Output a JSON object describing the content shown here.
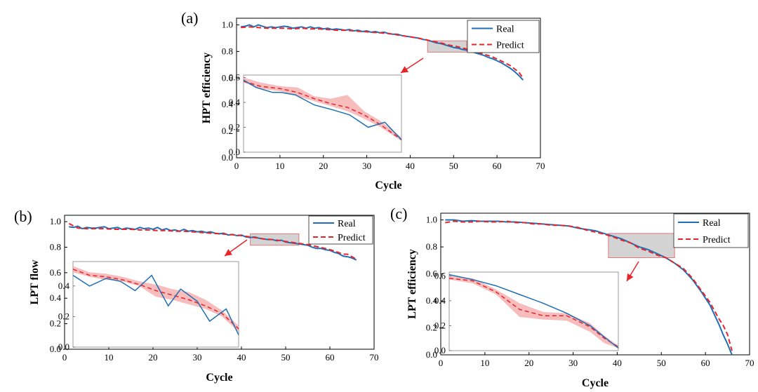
{
  "colors": {
    "real": "#1f6fb5",
    "predict": "#e8242b",
    "band": "#f4a6a6",
    "zoom_box_fill": "#c8c8c8",
    "zoom_box_stroke": "#e07a7a",
    "arrow": "#e8242b",
    "axis": "#000000",
    "inset_frame": "#9a9a9a"
  },
  "chart_data": [
    {
      "panel_label": "(a)",
      "type": "line",
      "xlabel": "Cycle",
      "ylabel": "HPT efficiency",
      "xlim": [
        0,
        70
      ],
      "ylim": [
        0.0,
        1.05
      ],
      "xticks": [
        0,
        10,
        20,
        30,
        40,
        50,
        60,
        70
      ],
      "xtick_labels": [
        "0",
        "10",
        "20",
        "30",
        "40",
        "50",
        "60",
        "70"
      ],
      "yticks": [
        0.0,
        0.2,
        0.4,
        0.6,
        0.8,
        1.0
      ],
      "ytick_labels": [
        "0.0",
        "0.2",
        "0.4",
        "0.6",
        "0.8",
        "1.0"
      ],
      "legend": {
        "placement": "top-right",
        "entries": [
          "Real",
          "Predict"
        ]
      },
      "grid": false,
      "series": [
        {
          "name": "Real",
          "style": "solid",
          "x": [
            1,
            2,
            3,
            4,
            5,
            6,
            7,
            8,
            9,
            10,
            11,
            12,
            13,
            14,
            15,
            16,
            17,
            18,
            19,
            20,
            21,
            22,
            23,
            24,
            25,
            26,
            27,
            28,
            29,
            30,
            31,
            32,
            33,
            34,
            35,
            36,
            37,
            38,
            39,
            40,
            41,
            42,
            43,
            44,
            45,
            46,
            47,
            48,
            49,
            50,
            51,
            52,
            53,
            54,
            55,
            56,
            57,
            58,
            59,
            60,
            61,
            62,
            63,
            64,
            65,
            66
          ],
          "y": [
            0.985,
            0.99,
            1.0,
            0.985,
            1.0,
            0.99,
            0.98,
            0.985,
            0.98,
            0.985,
            0.99,
            0.985,
            0.975,
            0.98,
            0.985,
            0.975,
            0.985,
            0.975,
            0.98,
            0.97,
            0.975,
            0.965,
            0.97,
            0.965,
            0.96,
            0.965,
            0.955,
            0.96,
            0.95,
            0.955,
            0.945,
            0.95,
            0.94,
            0.945,
            0.935,
            0.93,
            0.93,
            0.92,
            0.915,
            0.91,
            0.905,
            0.9,
            0.89,
            0.885,
            0.875,
            0.865,
            0.86,
            0.85,
            0.84,
            0.83,
            0.825,
            0.815,
            0.81,
            0.8,
            0.79,
            0.78,
            0.77,
            0.755,
            0.745,
            0.73,
            0.715,
            0.695,
            0.675,
            0.65,
            0.62,
            0.585
          ]
        },
        {
          "name": "Predict",
          "style": "dashed",
          "x": [
            1,
            3,
            5,
            7,
            9,
            11,
            13,
            15,
            17,
            19,
            21,
            23,
            25,
            27,
            29,
            31,
            33,
            35,
            37,
            39,
            41,
            43,
            45,
            47,
            49,
            51,
            53,
            55,
            57,
            59,
            61,
            63,
            65,
            66
          ],
          "y": [
            0.98,
            0.985,
            0.98,
            0.975,
            0.975,
            0.975,
            0.97,
            0.975,
            0.97,
            0.97,
            0.965,
            0.96,
            0.96,
            0.955,
            0.95,
            0.945,
            0.94,
            0.935,
            0.925,
            0.915,
            0.905,
            0.893,
            0.878,
            0.865,
            0.848,
            0.835,
            0.818,
            0.8,
            0.78,
            0.758,
            0.728,
            0.695,
            0.645,
            0.6
          ]
        }
      ],
      "zoom_region": {
        "x": [
          44,
          53
        ],
        "y": [
          0.795,
          0.88
        ]
      },
      "inset": {
        "x": [
          44,
          45,
          46,
          47,
          48,
          49,
          50,
          51,
          52,
          53
        ],
        "real": [
          0.58,
          0.52,
          0.48,
          0.48,
          0.46,
          0.38,
          0.34,
          0.3,
          0.2,
          0.24,
          0.1
        ],
        "real_x": [
          0,
          3,
          7,
          9,
          12.5,
          17,
          21.5,
          25.5,
          30,
          34,
          38
        ],
        "predict_x": [
          0,
          4,
          9,
          13,
          17,
          21,
          25,
          29,
          33,
          38
        ],
        "predict": [
          0.57,
          0.53,
          0.51,
          0.48,
          0.43,
          0.39,
          0.36,
          0.3,
          0.22,
          0.1
        ],
        "band_x": [
          0,
          4,
          9,
          13,
          17,
          21,
          25,
          29,
          33,
          38
        ],
        "band_lo": [
          0.56,
          0.51,
          0.49,
          0.45,
          0.41,
          0.37,
          0.33,
          0.27,
          0.2,
          0.09
        ],
        "band_hi": [
          0.6,
          0.56,
          0.53,
          0.52,
          0.45,
          0.43,
          0.46,
          0.33,
          0.25,
          0.12
        ],
        "xlim": [
          0,
          38
        ],
        "yticks": [
          0.0,
          0.2,
          0.4,
          0.6
        ],
        "ytick_labels": [
          "0.0",
          "0.2",
          "0.4",
          "0.6"
        ]
      }
    },
    {
      "panel_label": "(b)",
      "type": "line",
      "xlabel": "Cycle",
      "ylabel": "LPT flow",
      "xlim": [
        0,
        70
      ],
      "ylim": [
        0.0,
        1.05
      ],
      "xticks": [
        0,
        10,
        20,
        30,
        40,
        50,
        60,
        70
      ],
      "xtick_labels": [
        "0",
        "10",
        "20",
        "30",
        "40",
        "50",
        "60",
        "70"
      ],
      "yticks": [
        0.0,
        0.2,
        0.4,
        0.6,
        0.8,
        1.0
      ],
      "ytick_labels": [
        "0.0",
        "0.2",
        "0.4",
        "0.6",
        "0.8",
        "1.0"
      ],
      "legend": {
        "placement": "top-right",
        "entries": [
          "Real",
          "Predict"
        ]
      },
      "grid": false,
      "series": [
        {
          "name": "Real",
          "style": "solid",
          "x": [
            1,
            2,
            3,
            4,
            5,
            6,
            7,
            8,
            9,
            10,
            11,
            12,
            13,
            14,
            15,
            16,
            17,
            18,
            19,
            20,
            21,
            22,
            23,
            24,
            25,
            26,
            27,
            28,
            29,
            30,
            31,
            32,
            33,
            34,
            35,
            36,
            37,
            38,
            39,
            40,
            41,
            42,
            43,
            44,
            45,
            46,
            47,
            48,
            49,
            50,
            51,
            52,
            53,
            54,
            55,
            56,
            57,
            58,
            59,
            60,
            61,
            62,
            63,
            64,
            65,
            66
          ],
          "y": [
            0.96,
            0.955,
            0.965,
            0.945,
            0.955,
            0.95,
            0.95,
            0.955,
            0.96,
            0.945,
            0.95,
            0.955,
            0.94,
            0.95,
            0.945,
            0.94,
            0.955,
            0.945,
            0.95,
            0.94,
            0.955,
            0.935,
            0.945,
            0.93,
            0.935,
            0.925,
            0.94,
            0.925,
            0.93,
            0.92,
            0.925,
            0.915,
            0.92,
            0.91,
            0.905,
            0.91,
            0.895,
            0.9,
            0.89,
            0.895,
            0.88,
            0.875,
            0.88,
            0.87,
            0.865,
            0.86,
            0.86,
            0.85,
            0.855,
            0.84,
            0.835,
            0.83,
            0.825,
            0.82,
            0.815,
            0.8,
            0.79,
            0.79,
            0.78,
            0.775,
            0.76,
            0.75,
            0.73,
            0.725,
            0.715,
            0.7
          ]
        },
        {
          "name": "Predict",
          "style": "dashed",
          "x": [
            1,
            3,
            5,
            7,
            9,
            11,
            13,
            15,
            17,
            19,
            21,
            23,
            25,
            27,
            29,
            31,
            33,
            35,
            37,
            39,
            41,
            43,
            45,
            47,
            49,
            51,
            53,
            55,
            57,
            59,
            61,
            63,
            64,
            65,
            66
          ],
          "y": [
            0.985,
            0.95,
            0.945,
            0.945,
            0.945,
            0.94,
            0.94,
            0.94,
            0.935,
            0.935,
            0.93,
            0.93,
            0.925,
            0.925,
            0.92,
            0.915,
            0.91,
            0.905,
            0.9,
            0.895,
            0.885,
            0.875,
            0.865,
            0.86,
            0.85,
            0.84,
            0.83,
            0.82,
            0.805,
            0.79,
            0.77,
            0.745,
            0.745,
            0.725,
            0.705
          ]
        }
      ],
      "zoom_region": {
        "x": [
          42,
          53
        ],
        "y": [
          0.815,
          0.905
        ]
      },
      "inset": {
        "real_x": [
          0,
          4,
          8,
          11.5,
          15,
          19,
          23,
          26,
          30,
          33,
          37,
          40
        ],
        "real": [
          0.47,
          0.4,
          0.45,
          0.43,
          0.37,
          0.47,
          0.27,
          0.38,
          0.3,
          0.17,
          0.25,
          0.08
        ],
        "predict_x": [
          0,
          4,
          8,
          12,
          16,
          20,
          24,
          28,
          32,
          36,
          40
        ],
        "predict": [
          0.51,
          0.47,
          0.46,
          0.44,
          0.41,
          0.37,
          0.34,
          0.31,
          0.27,
          0.22,
          0.12
        ],
        "band_x": [
          0,
          4,
          8,
          12,
          16,
          20,
          24,
          28,
          32,
          36,
          40
        ],
        "band_lo": [
          0.49,
          0.46,
          0.44,
          0.43,
          0.4,
          0.33,
          0.31,
          0.28,
          0.25,
          0.2,
          0.1
        ],
        "band_hi": [
          0.53,
          0.49,
          0.48,
          0.46,
          0.43,
          0.41,
          0.38,
          0.36,
          0.31,
          0.24,
          0.14
        ],
        "xlim": [
          0,
          40
        ],
        "yticks": [
          0.0,
          0.2,
          0.4
        ],
        "ytick_labels": [
          "0.0",
          "0.2",
          "0.4"
        ]
      }
    },
    {
      "panel_label": "(c)",
      "type": "line",
      "xlabel": "Cycle",
      "ylabel": "LPT efficiency",
      "xlim": [
        0,
        70
      ],
      "ylim": [
        0.0,
        1.05
      ],
      "xticks": [
        0,
        10,
        20,
        30,
        40,
        50,
        60,
        70
      ],
      "xtick_labels": [
        "0",
        "10",
        "20",
        "30",
        "40",
        "50",
        "60",
        "70"
      ],
      "yticks": [
        0.0,
        0.2,
        0.4,
        0.6,
        0.8,
        1.0
      ],
      "ytick_labels": [
        "0.0",
        "0.2",
        "0.4",
        "0.6",
        "0.8",
        "1.0"
      ],
      "legend": {
        "placement": "top-right",
        "entries": [
          "Real",
          "Predict"
        ]
      },
      "grid": false,
      "series": [
        {
          "name": "Real",
          "style": "solid",
          "x": [
            1,
            3,
            5,
            7,
            9,
            11,
            13,
            15,
            17,
            19,
            21,
            23,
            25,
            27,
            29,
            31,
            33,
            35,
            37,
            39,
            41,
            43,
            45,
            47,
            49,
            51,
            53,
            55,
            57,
            59,
            61,
            63,
            64,
            65,
            66
          ],
          "y": [
            1.0,
            1.0,
            0.99,
            0.995,
            0.99,
            0.99,
            0.99,
            0.985,
            0.985,
            0.98,
            0.975,
            0.97,
            0.965,
            0.96,
            0.955,
            0.94,
            0.93,
            0.92,
            0.9,
            0.88,
            0.86,
            0.83,
            0.8,
            0.78,
            0.75,
            0.72,
            0.68,
            0.63,
            0.56,
            0.47,
            0.37,
            0.23,
            0.15,
            0.08,
            0.0
          ]
        },
        {
          "name": "Predict",
          "style": "dashed",
          "x": [
            1,
            3,
            5,
            7,
            9,
            11,
            13,
            15,
            17,
            19,
            21,
            23,
            25,
            27,
            29,
            31,
            33,
            35,
            37,
            39,
            41,
            43,
            45,
            47,
            49,
            51,
            53,
            55,
            57,
            59,
            61,
            63,
            64,
            65,
            66
          ],
          "y": [
            0.98,
            0.99,
            0.985,
            0.985,
            0.99,
            0.985,
            0.985,
            0.99,
            0.98,
            0.98,
            0.97,
            0.97,
            0.96,
            0.96,
            0.955,
            0.945,
            0.925,
            0.91,
            0.895,
            0.875,
            0.85,
            0.83,
            0.79,
            0.77,
            0.74,
            0.72,
            0.68,
            0.64,
            0.57,
            0.48,
            0.39,
            0.27,
            0.22,
            0.15,
            0.03
          ]
        }
      ],
      "zoom_region": {
        "x": [
          38,
          53
        ],
        "y": [
          0.72,
          0.9
        ]
      },
      "inset": {
        "real_x": [
          0,
          5,
          10,
          15,
          20,
          25,
          30,
          33,
          36
        ],
        "real": [
          0.61,
          0.57,
          0.52,
          0.45,
          0.38,
          0.3,
          0.2,
          0.11,
          0.02
        ],
        "predict_x": [
          0,
          5,
          10,
          15,
          20,
          25,
          30,
          33,
          36
        ],
        "predict": [
          0.58,
          0.56,
          0.47,
          0.33,
          0.28,
          0.28,
          0.19,
          0.1,
          0.03
        ],
        "band_x": [
          0,
          5,
          10,
          15,
          20,
          25,
          30,
          33,
          36
        ],
        "band_lo": [
          0.57,
          0.54,
          0.45,
          0.27,
          0.25,
          0.24,
          0.15,
          0.06,
          0.02
        ],
        "band_hi": [
          0.6,
          0.58,
          0.49,
          0.38,
          0.31,
          0.3,
          0.22,
          0.12,
          0.04
        ],
        "xlim": [
          0,
          36
        ],
        "yticks": [
          0.0,
          0.2,
          0.4,
          0.6
        ],
        "ytick_labels": [
          "0.0",
          "0.2",
          "0.4",
          "0.6"
        ]
      }
    }
  ]
}
